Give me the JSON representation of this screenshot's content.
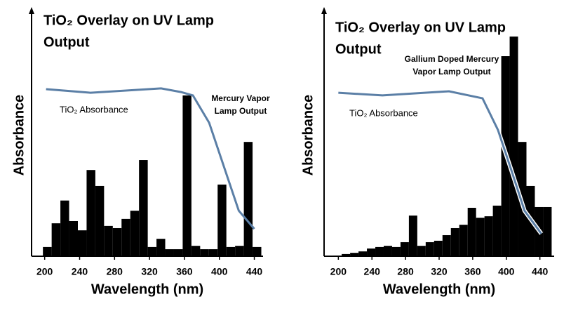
{
  "chart_data": [
    {
      "type": "histogram",
      "title": [
        "TiO₂ Overlay on UV Lamp",
        "Output"
      ],
      "xlabel": "Wavelength (nm)",
      "ylabel": "Absorbance",
      "bins": [
        198,
        208,
        218,
        228,
        238,
        248,
        258,
        268,
        278,
        288,
        298,
        308,
        318,
        328,
        338,
        348,
        358,
        368,
        378,
        388,
        398,
        408,
        418,
        428,
        438,
        448
      ],
      "counts": [
        3.8,
        13.6,
        23,
        14.5,
        10.7,
        35.6,
        29,
        12.5,
        11.6,
        15.4,
        18.8,
        39.7,
        3.8,
        7.2,
        2.9,
        2.9,
        66.4,
        4.3,
        2.9,
        2.9,
        29.6,
        3.8,
        4.3,
        47.2,
        3.8
      ],
      "color": "#000000",
      "xlim": [
        185,
        450
      ],
      "xticks": [
        200,
        240,
        280,
        320,
        360,
        400,
        440
      ],
      "ylim": [
        0,
        100
      ],
      "annotation": [
        "Mercury Vapor",
        "Lamp Output"
      ],
      "series": [
        {
          "name": "TiO₂ Absorbance",
          "color": "#5b7fa6",
          "x": [
            201.6,
            252.5,
            333.3,
            356,
            369.7,
            388.3,
            422.2,
            440
          ],
          "values": [
            69.0,
            67.5,
            69.3,
            67.8,
            66.4,
            55.1,
            18.8,
            11.3
          ]
        }
      ]
    },
    {
      "type": "histogram",
      "title": [
        "TiO₂ Overlay on UV Lamp",
        "Output"
      ],
      "xlabel": "Wavelength (nm)",
      "ylabel": "Absorbance",
      "bins": [
        194,
        204,
        214,
        224,
        234,
        244,
        254,
        264,
        274,
        284,
        294,
        304,
        314,
        324,
        334,
        344,
        354,
        364,
        374,
        384,
        394,
        404,
        414,
        424,
        434,
        444,
        454
      ],
      "counts": [
        0.3,
        0.9,
        1.4,
        2,
        3.2,
        3.8,
        4.3,
        3.8,
        5.8,
        16.8,
        4.3,
        5.8,
        6.4,
        8.7,
        11.6,
        13,
        20,
        15.9,
        16.5,
        20.9,
        82.6,
        90.7,
        47.2,
        29,
        20.3,
        20.3
      ],
      "color": "#000000",
      "xlim": [
        183,
        457
      ],
      "xticks": [
        200,
        240,
        280,
        320,
        360,
        400,
        440
      ],
      "ylim": [
        0,
        100
      ],
      "annotation": [
        "Gallium Doped Mercury",
        "Vapor Lamp Output"
      ],
      "series": [
        {
          "name": "TiO₂ Absorbance",
          "color": "#5b7fa6",
          "x": [
            200,
            252.5,
            331.7,
            371.7,
            390,
            406.7,
            421.7,
            441.7
          ],
          "values": [
            67.5,
            66.4,
            68.1,
            65.2,
            52.2,
            34.8,
            18.8,
            9.3
          ]
        }
      ]
    }
  ]
}
